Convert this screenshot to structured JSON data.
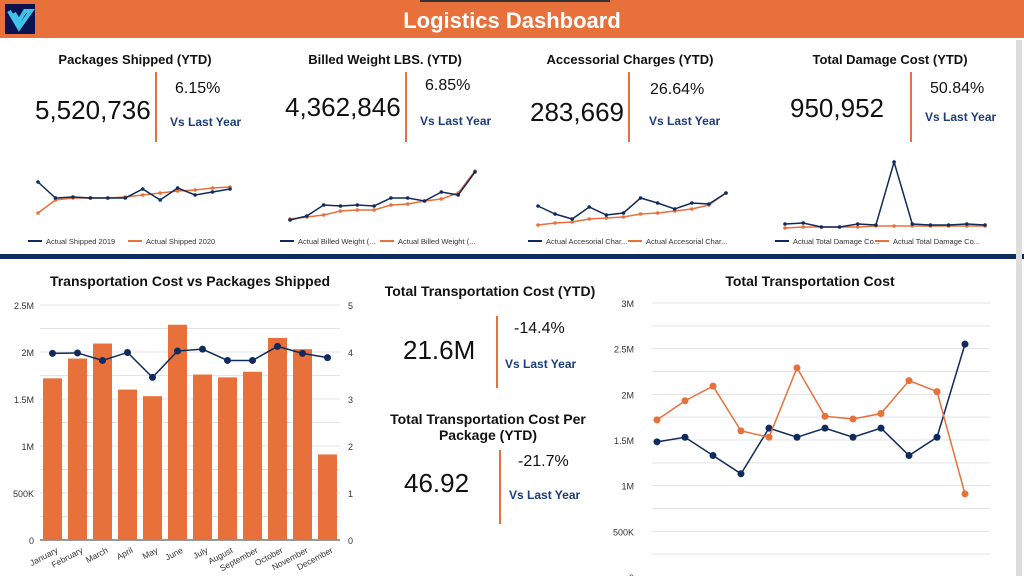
{
  "header": {
    "title": "Logistics Dashboard",
    "logo": "V"
  },
  "colors": {
    "orange": "#e8703a",
    "navy": "#0f2a5c"
  },
  "kpis": [
    {
      "title": "Packages Shipped (YTD)",
      "value": "5,520,736",
      "pct": "6.15%",
      "vs": "Vs Last Year"
    },
    {
      "title": "Billed Weight LBS. (YTD)",
      "value": "4,362,846",
      "pct": "6.85%",
      "vs": "Vs Last Year"
    },
    {
      "title": "Accessorial Charges (YTD)",
      "value": "283,669",
      "pct": "26.64%",
      "vs": "Vs Last Year"
    },
    {
      "title": "Total Damage Cost (YTD)",
      "value": "950,952",
      "pct": "50.84%",
      "vs": "Vs Last Year"
    }
  ],
  "sparklines": [
    {
      "legend": [
        "Actual Shipped 2019",
        "Actual Shipped 2020"
      ],
      "s1": [
        48,
        32,
        33,
        32,
        32,
        32,
        41,
        30,
        42,
        35,
        38,
        41
      ],
      "s2": [
        17,
        30,
        32,
        32,
        32,
        33,
        35,
        37,
        39,
        40,
        42,
        43
      ]
    },
    {
      "legend": [
        "Actual Billed Weight (...",
        "Actual Billed Weight (..."
      ],
      "s1": [
        10,
        14,
        25,
        24,
        25,
        24,
        32,
        32,
        29,
        38,
        35,
        58
      ],
      "s2": [
        11,
        13,
        15,
        19,
        20,
        20,
        25,
        26,
        29,
        31,
        37,
        59
      ]
    },
    {
      "legend": [
        "Actual Accesorial Char...",
        "Actual Accesorial Char..."
      ],
      "s1": [
        24,
        16,
        11,
        23,
        15,
        17,
        32,
        27,
        21,
        27,
        26,
        37
      ],
      "s2": [
        5,
        7,
        8,
        11,
        12,
        13,
        16,
        17,
        19,
        21,
        25,
        37
      ]
    },
    {
      "legend": [
        "Actual Total Damage Co...",
        "Actual Total Damage Co..."
      ],
      "s1": [
        6,
        7,
        3,
        3,
        6,
        5,
        68,
        6,
        5,
        5,
        6,
        5
      ],
      "s2": [
        2,
        3,
        3,
        3,
        3,
        4,
        4,
        4,
        4,
        4,
        4,
        4
      ]
    }
  ],
  "mid": {
    "kpi1": {
      "title": "Total Transportation Cost (YTD)",
      "value": "21.6M",
      "pct": "-14.4%",
      "vs": "Vs Last Year"
    },
    "kpi2": {
      "title": "Total Transportation Cost Per Package (YTD)",
      "value": "46.92",
      "pct": "-21.7%",
      "vs": "Vs Last Year"
    }
  },
  "chart_data": [
    {
      "type": "bar",
      "title": "Transportation Cost vs Packages Shipped",
      "categories": [
        "January",
        "February",
        "March",
        "April",
        "May",
        "June",
        "July",
        "August",
        "September",
        "October",
        "November",
        "December"
      ],
      "series": [
        {
          "type": "bar",
          "axis": "left",
          "values": [
            1720000,
            1930000,
            2090000,
            1600000,
            1530000,
            2290000,
            1760000,
            1730000,
            1790000,
            2150000,
            2030000,
            910000
          ]
        },
        {
          "type": "line",
          "axis": "right",
          "values": [
            3.97,
            3.98,
            3.82,
            3.99,
            3.46,
            4.02,
            4.06,
            3.82,
            3.82,
            4.12,
            3.97,
            3.88
          ]
        }
      ],
      "ylim": [
        0,
        2500000
      ],
      "y2lim": [
        0,
        5
      ],
      "yticks": [
        "0",
        "500K",
        "1M",
        "1.5M",
        "2M",
        "2.5M"
      ],
      "y2ticks": [
        "0",
        "1",
        "2",
        "3",
        "4",
        "5"
      ],
      "grid": true
    },
    {
      "type": "line",
      "title": "Total Transportation Cost",
      "series": [
        {
          "color": "#0f2a5c",
          "values": [
            1480000,
            1530000,
            1330000,
            1130000,
            1630000,
            1530000,
            1630000,
            1530000,
            1630000,
            1330000,
            1530000,
            2550000
          ]
        },
        {
          "color": "#e8703a",
          "values": [
            1720000,
            1930000,
            2090000,
            1600000,
            1530000,
            2290000,
            1760000,
            1730000,
            1790000,
            2150000,
            2030000,
            910000
          ]
        }
      ],
      "ylim": [
        0,
        3000000
      ],
      "yticks": [
        "0",
        "500K",
        "1M",
        "1.5M",
        "2M",
        "2.5M",
        "3M"
      ],
      "grid": true
    }
  ]
}
